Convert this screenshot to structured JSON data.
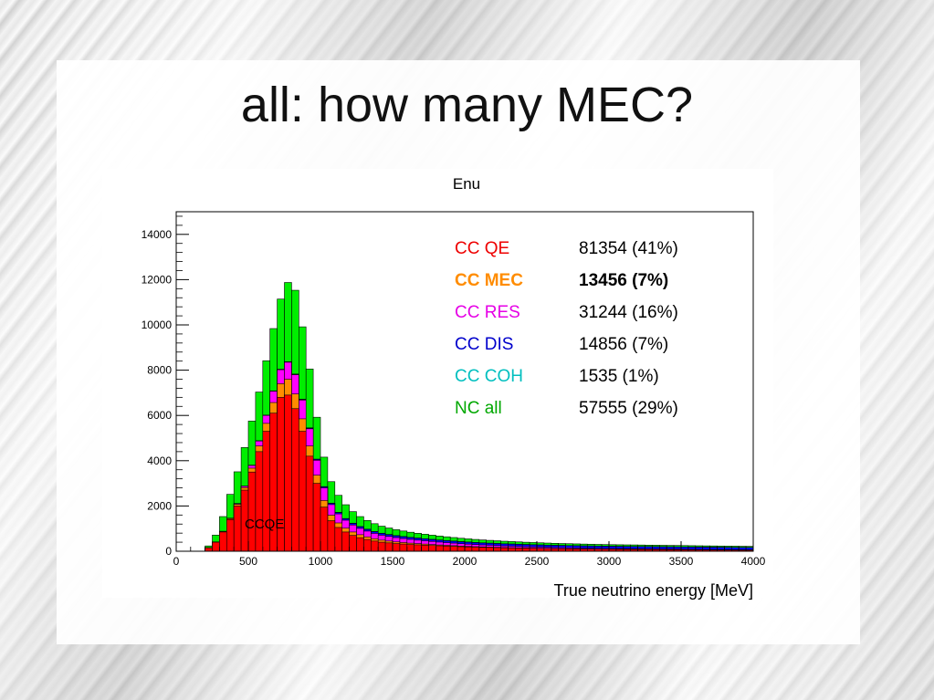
{
  "slide": {
    "title": "all: how many MEC?"
  },
  "chart_data": {
    "type": "bar",
    "title": "Enu",
    "xlabel": "True neutrino energy [MeV]",
    "ylabel": "",
    "xlim": [
      0,
      4000
    ],
    "ylim": [
      0,
      15000
    ],
    "x_ticks": [
      0,
      500,
      1000,
      1500,
      2000,
      2500,
      3000,
      3500,
      4000
    ],
    "y_ticks": [
      0,
      2000,
      4000,
      6000,
      8000,
      10000,
      12000,
      14000
    ],
    "bin_width": 50,
    "stacked": true,
    "annotation": "CCQE",
    "series": [
      {
        "name": "CC QE",
        "color": "#ff0000",
        "values": [
          0,
          0,
          0,
          0,
          150,
          400,
          850,
          1400,
          2000,
          2700,
          3500,
          4400,
          5300,
          6100,
          6800,
          6900,
          6300,
          5300,
          4200,
          3000,
          1950,
          1350,
          1050,
          850,
          700,
          600,
          520,
          450,
          400,
          370,
          340,
          320,
          300,
          285,
          270,
          255,
          240,
          228,
          215,
          200,
          190,
          180,
          172,
          165,
          158,
          150,
          144,
          138,
          132,
          126,
          120,
          115,
          110,
          106,
          102,
          98,
          95,
          92,
          89,
          86,
          84,
          82,
          80,
          78,
          76,
          74,
          72,
          70,
          68,
          66,
          64,
          62,
          60,
          58,
          56,
          54,
          52,
          50,
          48,
          46
        ]
      },
      {
        "name": "CC MEC",
        "color": "#ff8c00",
        "values": [
          0,
          0,
          0,
          0,
          3,
          8,
          20,
          40,
          70,
          110,
          170,
          250,
          350,
          470,
          600,
          700,
          650,
          550,
          450,
          360,
          290,
          240,
          200,
          170,
          150,
          130,
          115,
          102,
          90,
          80,
          72,
          64,
          58,
          52,
          47,
          42,
          38,
          34,
          31,
          28,
          25,
          23,
          21,
          19,
          17,
          15,
          14,
          13,
          12,
          11,
          10,
          9,
          8,
          8,
          7,
          7,
          6,
          6,
          5,
          5,
          5,
          4,
          4,
          4,
          4,
          3,
          3,
          3,
          3,
          3,
          3,
          2,
          2,
          2,
          2,
          2,
          2,
          2,
          2,
          2
        ]
      },
      {
        "name": "CC RES",
        "color": "#ff00ff",
        "values": [
          0,
          0,
          0,
          0,
          0,
          2,
          6,
          15,
          30,
          60,
          120,
          220,
          350,
          500,
          620,
          750,
          850,
          830,
          760,
          660,
          560,
          470,
          400,
          350,
          310,
          280,
          255,
          235,
          218,
          203,
          190,
          178,
          166,
          155,
          145,
          136,
          127,
          119,
          111,
          104,
          97,
          91,
          85,
          80,
          75,
          70,
          66,
          62,
          58,
          55,
          52,
          49,
          46,
          44,
          42,
          40,
          38,
          36,
          34,
          32,
          31,
          30,
          29,
          28,
          27,
          26,
          25,
          24,
          23,
          22,
          21,
          20,
          19,
          18,
          18,
          17,
          16,
          16,
          15,
          15
        ]
      },
      {
        "name": "CC DIS",
        "color": "#0000ff",
        "values": [
          0,
          0,
          0,
          0,
          0,
          0,
          0,
          0,
          0,
          0,
          0,
          0,
          1,
          3,
          6,
          10,
          16,
          22,
          30,
          38,
          46,
          54,
          60,
          66,
          70,
          73,
          76,
          78,
          80,
          81,
          82,
          83,
          84,
          85,
          86,
          86,
          87,
          88,
          88,
          89,
          89,
          90,
          90,
          91,
          92,
          92,
          93,
          93,
          94,
          94,
          95,
          95,
          96,
          96,
          97,
          97,
          97,
          98,
          98,
          98,
          99,
          99,
          99,
          100,
          100,
          100,
          100,
          100,
          100,
          101,
          101,
          101,
          101,
          101,
          101,
          101,
          101,
          101,
          101,
          101
        ]
      },
      {
        "name": "CC COH",
        "color": "#00bfbf",
        "values": [
          0,
          0,
          0,
          0,
          2,
          4,
          6,
          8,
          10,
          12,
          13,
          14,
          15,
          15,
          15,
          14,
          14,
          13,
          12,
          12,
          11,
          10,
          10,
          9,
          9,
          8,
          8,
          7,
          7,
          7,
          6,
          6,
          6,
          5,
          5,
          5,
          5,
          4,
          4,
          4,
          4,
          3,
          3,
          3,
          3,
          3,
          3,
          3,
          2,
          2,
          2,
          2,
          2,
          2,
          2,
          2,
          2,
          2,
          2,
          2,
          1,
          1,
          1,
          1,
          1,
          1,
          1,
          1,
          1,
          1,
          1,
          1,
          1,
          1,
          1,
          1,
          1,
          1,
          1,
          1
        ]
      },
      {
        "name": "NC all",
        "color": "#00ee00",
        "values": [
          0,
          0,
          0,
          0,
          80,
          300,
          650,
          1050,
          1400,
          1700,
          1950,
          2150,
          2400,
          2750,
          3100,
          3500,
          3700,
          3200,
          2600,
          1850,
          1300,
          950,
          750,
          610,
          510,
          440,
          385,
          345,
          312,
          285,
          262,
          243,
          226,
          211,
          198,
          186,
          175,
          165,
          156,
          148,
          141,
          134,
          128,
          122,
          117,
          112,
          108,
          104,
          100,
          97,
          94,
          91,
          88,
          85,
          83,
          81,
          79,
          77,
          75,
          73,
          71,
          70,
          69,
          68,
          67,
          66,
          65,
          64,
          63,
          62,
          61,
          60,
          59,
          58,
          57,
          56,
          55,
          54,
          53,
          52
        ]
      }
    ],
    "legend": [
      {
        "label": "CC QE",
        "value": "81354 (41%)",
        "color": "#ee0000",
        "bold": false
      },
      {
        "label": "CC MEC",
        "value": "13456 (7%)",
        "color": "#ff8c00",
        "bold": true
      },
      {
        "label": "CC RES",
        "value": "31244 (16%)",
        "color": "#e600e6",
        "bold": false
      },
      {
        "label": "CC DIS",
        "value": "14856 (7%)",
        "color": "#0000cc",
        "bold": false
      },
      {
        "label": "CC COH",
        "value": "1535 (1%)",
        "color": "#00bfbf",
        "bold": false
      },
      {
        "label": "NC all",
        "value": "57555 (29%)",
        "color": "#00a800",
        "bold": false
      }
    ]
  }
}
